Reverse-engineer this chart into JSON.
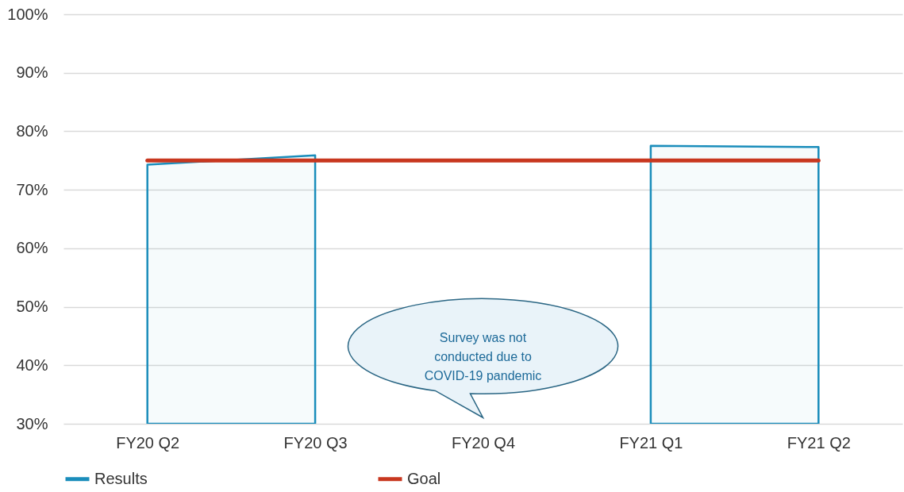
{
  "chart_data": {
    "type": "area",
    "categories": [
      "FY20 Q2",
      "FY20 Q3",
      "FY20 Q4",
      "FY21 Q1",
      "FY21 Q2"
    ],
    "series": [
      {
        "name": "Results",
        "color": "#1a8dbb",
        "values": [
          74.3,
          75.9,
          null,
          77.5,
          77.3
        ]
      },
      {
        "name": "Goal",
        "type": "line",
        "color": "#c8371f",
        "values": [
          75,
          75,
          75,
          75,
          75
        ]
      }
    ],
    "ylim": [
      30,
      100
    ],
    "yticks": [
      {
        "value": 30,
        "label": "30%"
      },
      {
        "value": 40,
        "label": "40%"
      },
      {
        "value": 50,
        "label": "50%"
      },
      {
        "value": 60,
        "label": "60%"
      },
      {
        "value": 70,
        "label": "70%"
      },
      {
        "value": 80,
        "label": "80%"
      },
      {
        "value": 90,
        "label": "90%"
      },
      {
        "value": 100,
        "label": "100%"
      }
    ],
    "grid": "y",
    "legend": "bottom",
    "annotations": [
      "Survey was not conducted due to COVID-19 pandemic"
    ]
  }
}
